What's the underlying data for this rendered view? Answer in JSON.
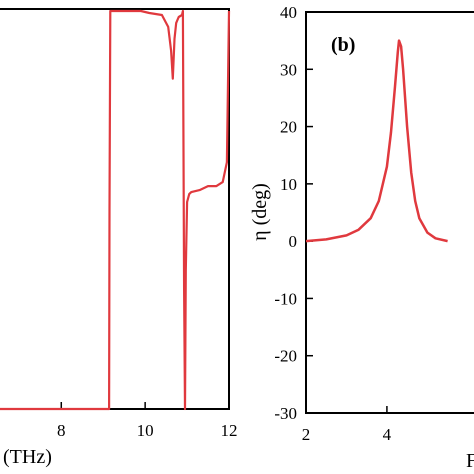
{
  "chart_data": [
    {
      "type": "line",
      "panel": "a",
      "xlabel": "(THz)",
      "xlim": [
        6.3,
        12
      ],
      "xticks": [
        8,
        10,
        12
      ],
      "ylabel": "",
      "color": "#e0393e",
      "series": [
        {
          "x": [
            6.3,
            9.14,
            9.15,
            9.17,
            9.2,
            9.6,
            9.9,
            10.1,
            10.4,
            10.55,
            10.62,
            10.66,
            10.7,
            10.74,
            10.8,
            10.88,
            10.9,
            10.93,
            10.95,
            10.97,
            11.0,
            11.05,
            11.1,
            11.3,
            11.5,
            11.7,
            11.85,
            11.95,
            12.0
          ],
          "y": [
            0.0,
            0.0,
            0.5,
            1.0,
            1.0,
            1.0,
            1.0,
            0.995,
            0.99,
            0.96,
            0.9,
            0.83,
            0.93,
            0.97,
            0.985,
            0.99,
            1.0,
            0.3,
            0.0,
            0.35,
            0.52,
            0.54,
            0.545,
            0.55,
            0.56,
            0.56,
            0.57,
            0.62,
            1.0
          ]
        }
      ]
    },
    {
      "type": "line",
      "panel": "b",
      "title": "(b)",
      "xlabel": "F",
      "ylabel": "η  (deg)",
      "xlim": [
        2,
        6.4
      ],
      "ylim": [
        -30,
        40
      ],
      "xticks": [
        2,
        4
      ],
      "yticks": [
        -30,
        -20,
        -10,
        0,
        10,
        20,
        30,
        40
      ],
      "color": "#e0393e",
      "series": [
        {
          "x": [
            2.0,
            2.5,
            3.0,
            3.3,
            3.6,
            3.8,
            4.0,
            4.1,
            4.2,
            4.27,
            4.3,
            4.35,
            4.4,
            4.5,
            4.6,
            4.7,
            4.8,
            5.0,
            5.2,
            5.5
          ],
          "y": [
            0.0,
            0.3,
            1.0,
            2.0,
            4.0,
            7.0,
            13.0,
            19.0,
            27.0,
            33.0,
            35.0,
            34.0,
            30.0,
            20.0,
            12.0,
            7.0,
            4.0,
            1.5,
            0.5,
            0.0
          ]
        }
      ]
    }
  ]
}
